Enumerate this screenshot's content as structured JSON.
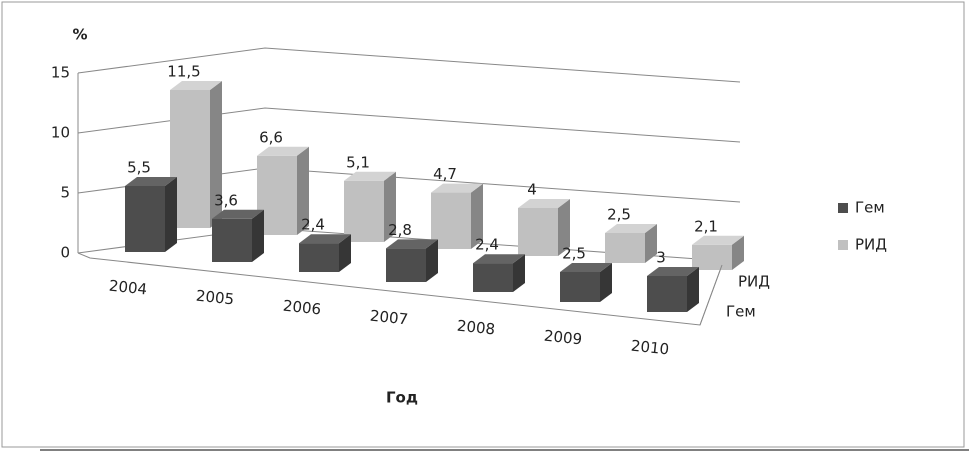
{
  "chart_data": {
    "type": "bar3d",
    "y_label": "%",
    "x_label": "Год",
    "categories": [
      "2004",
      "2005",
      "2006",
      "2007",
      "2008",
      "2009",
      "2010"
    ],
    "series": [
      {
        "name": "Гем",
        "color": "#4d4d4d",
        "values": [
          5.5,
          3.6,
          2.4,
          2.8,
          2.4,
          2.5,
          3
        ],
        "value_labels": [
          "5,5",
          "3,6",
          "2,4",
          "2,8",
          "2,4",
          "2,5",
          "3"
        ]
      },
      {
        "name": "РИД",
        "color": "#c0c0c0",
        "values": [
          11.5,
          6.6,
          5.1,
          4.7,
          4,
          2.5,
          2.1
        ],
        "value_labels": [
          "11,5",
          "6,6",
          "5,1",
          "4,7",
          "4",
          "2,5",
          "2,1"
        ]
      }
    ],
    "ylim": [
      0,
      15
    ],
    "yticks": [
      0,
      5,
      10,
      15
    ],
    "grid": true,
    "legend": "right"
  }
}
